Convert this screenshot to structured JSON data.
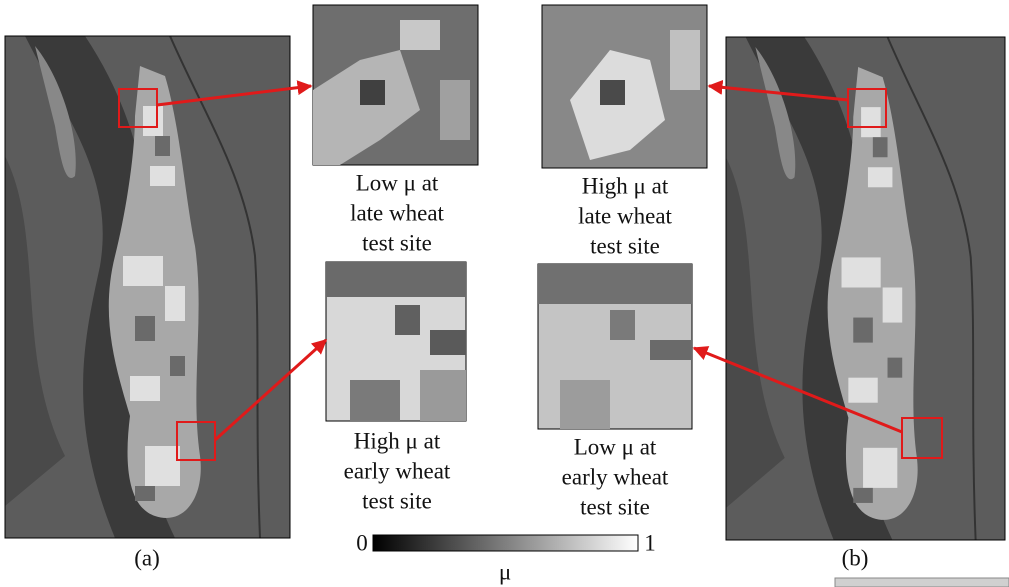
{
  "panels": [
    {
      "label": "(a)"
    },
    {
      "label": "(b)"
    }
  ],
  "insets": [
    {
      "caption": [
        "Low μ at",
        "late wheat",
        "test site"
      ]
    },
    {
      "caption": [
        "High μ at",
        "early wheat",
        "test site"
      ]
    },
    {
      "caption": [
        "High μ at",
        "late wheat",
        "test site"
      ]
    },
    {
      "caption": [
        "Low μ at",
        "early wheat",
        "test site"
      ]
    }
  ],
  "colorbar": {
    "min": 0,
    "max": 1,
    "label": "μ"
  }
}
